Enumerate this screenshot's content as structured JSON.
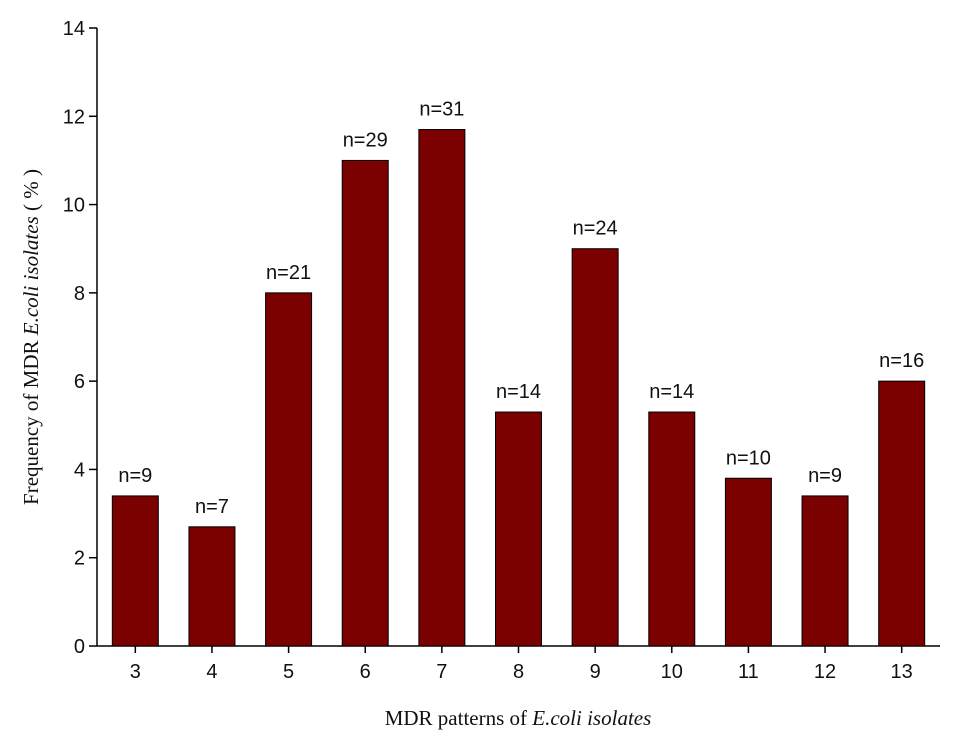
{
  "chart_data": {
    "type": "bar",
    "categories": [
      "3",
      "4",
      "5",
      "6",
      "7",
      "8",
      "9",
      "10",
      "11",
      "12",
      "13"
    ],
    "values": [
      3.4,
      2.7,
      8.0,
      11.0,
      11.7,
      5.3,
      9.0,
      5.3,
      3.8,
      3.4,
      6.0
    ],
    "data_labels": [
      "n=9",
      "n=7",
      "n=21",
      "n=29",
      "n=31",
      "n=14",
      "n=24",
      "n=14",
      "n=10",
      "n=9",
      "n=16"
    ],
    "xlabel": {
      "prefix": "MDR patterns of ",
      "italic": "E.coli isolates",
      "suffix": ""
    },
    "ylabel": {
      "prefix": "Frequency of MDR ",
      "italic": "E.coli isolates",
      "suffix": " ( % )"
    },
    "ylim": [
      0,
      14
    ],
    "yticks": [
      "0",
      "2",
      "4",
      "6",
      "8",
      "10",
      "12",
      "14"
    ],
    "bar_color": "#7b0000",
    "grid": false,
    "legend": "none"
  }
}
